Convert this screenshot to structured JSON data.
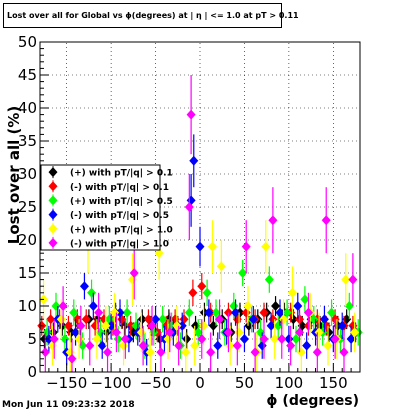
{
  "title": "Lost over all for Global vs ϕ(degrees) at | η | <= 1.0 at pT > 0.11",
  "timestamp": "Mon Jun 11 09:23:32 2018",
  "chart_data": {
    "type": "scatter",
    "title": "Lost over all for Global vs ϕ(degrees) at | η | <= 1.0 at pT > 0.11",
    "xlabel": "ϕ (degrees)",
    "ylabel": "Lost over all (%)",
    "xlim": [
      -180,
      180
    ],
    "ylim": [
      0,
      50
    ],
    "xticks": [
      -150,
      -100,
      -50,
      0,
      50,
      100,
      150
    ],
    "xtick_labels": [
      "−150",
      "−100",
      "−50",
      "0",
      "50",
      "100",
      "150"
    ],
    "yticks": [
      0,
      5,
      10,
      15,
      20,
      25,
      30,
      35,
      40,
      45,
      50
    ],
    "grid": true,
    "legend_position": "left, middle",
    "series": [
      {
        "name": "(+) with pT/|q| > 0.1",
        "color": "#000000",
        "x": [
          -175,
          -165,
          -155,
          -145,
          -135,
          -125,
          -115,
          -105,
          -95,
          -85,
          -75,
          -65,
          -55,
          -45,
          -35,
          -25,
          -15,
          -5,
          5,
          15,
          25,
          35,
          45,
          55,
          65,
          75,
          85,
          95,
          105,
          115,
          125,
          135,
          145,
          155,
          165,
          175
        ],
        "y": [
          5,
          6,
          7,
          6,
          7,
          8,
          8,
          6,
          9,
          7,
          6,
          8,
          7,
          5,
          8,
          7,
          5,
          7,
          9,
          7,
          8,
          6,
          9,
          7,
          8,
          9,
          10,
          9,
          8,
          7,
          8,
          7,
          6,
          7,
          8,
          6
        ],
        "yerr": [
          1.5,
          1.5,
          1.5,
          1.5,
          1.5,
          1.5,
          1.5,
          1.5,
          1.5,
          1.5,
          1.5,
          1.5,
          1.5,
          1.5,
          1.5,
          1.5,
          1.5,
          1.5,
          1.5,
          1.5,
          1.5,
          1.5,
          1.5,
          1.5,
          1.5,
          1.5,
          1.5,
          1.5,
          1.5,
          1.5,
          1.5,
          1.5,
          1.5,
          1.5,
          1.5,
          1.5
        ]
      },
      {
        "name": "(-) with pT/|q| > 0.1",
        "color": "#ff0000",
        "x": [
          -178,
          -168,
          -158,
          -148,
          -138,
          -128,
          -118,
          -108,
          -98,
          -88,
          -78,
          -68,
          -58,
          -48,
          -38,
          -28,
          -18,
          -8,
          2,
          12,
          22,
          32,
          42,
          52,
          62,
          72,
          82,
          92,
          102,
          112,
          122,
          132,
          142,
          152,
          162,
          172
        ],
        "y": [
          7,
          8,
          8,
          7,
          8,
          8,
          7,
          8,
          7,
          8,
          7,
          6,
          8,
          6,
          7,
          8,
          8,
          12,
          13,
          9,
          8,
          9,
          8,
          9,
          8,
          9,
          8,
          8,
          9,
          8,
          7,
          8,
          7,
          8,
          7,
          7
        ],
        "yerr": [
          1.5,
          1.5,
          1.5,
          1.5,
          1.5,
          1.5,
          1.5,
          1.5,
          1.5,
          1.5,
          1.5,
          1.5,
          1.5,
          1.5,
          1.5,
          1.5,
          1.5,
          2,
          2,
          1.5,
          1.5,
          1.5,
          1.5,
          1.5,
          1.5,
          1.5,
          1.5,
          1.5,
          1.5,
          1.5,
          1.5,
          1.5,
          1.5,
          1.5,
          1.5,
          1.5
        ]
      },
      {
        "name": "(+) with pT/|q| > 0.5",
        "color": "#00ff00",
        "x": [
          -172,
          -162,
          -152,
          -142,
          -132,
          -122,
          -112,
          -102,
          -92,
          -82,
          -72,
          -62,
          -52,
          -42,
          -32,
          -22,
          -12,
          -2,
          8,
          18,
          28,
          38,
          48,
          58,
          68,
          78,
          88,
          98,
          108,
          118,
          128,
          138,
          148,
          158,
          168,
          178
        ],
        "y": [
          6,
          10,
          5,
          9,
          4,
          12,
          6,
          8,
          5,
          9,
          7,
          4,
          6,
          8,
          7,
          4,
          9,
          6,
          12,
          9,
          6,
          10,
          15,
          8,
          6,
          14,
          7,
          9,
          5,
          11,
          8,
          6,
          9,
          5,
          10,
          6
        ],
        "yerr": [
          2,
          2,
          2,
          2,
          2,
          2,
          2,
          2,
          2,
          2,
          2,
          2,
          2,
          2,
          2,
          2,
          2,
          2,
          2,
          2,
          2,
          2,
          2,
          2,
          2,
          2,
          2,
          2,
          2,
          2,
          2,
          2,
          2,
          2,
          2,
          2
        ]
      },
      {
        "name": "(-) with pT/|q| > 0.5",
        "color": "#0000ff",
        "x": [
          -170,
          -160,
          -150,
          -140,
          -130,
          -120,
          -110,
          -100,
          -90,
          -80,
          -70,
          -60,
          -50,
          -40,
          -30,
          -20,
          -10,
          -7,
          0,
          10,
          20,
          30,
          40,
          50,
          60,
          70,
          80,
          90,
          100,
          110,
          120,
          130,
          140,
          150,
          160,
          170
        ],
        "y": [
          5,
          8,
          3,
          6,
          13,
          10,
          4,
          7,
          9,
          5,
          6,
          3,
          8,
          5,
          6,
          7,
          26,
          32,
          19,
          9,
          4,
          6,
          9,
          5,
          8,
          4,
          7,
          9,
          5,
          10,
          4,
          6,
          8,
          5,
          7,
          5
        ],
        "yerr": [
          2,
          2,
          2,
          2,
          2,
          2,
          2,
          2,
          2,
          2,
          2,
          2,
          2,
          2,
          2,
          2,
          4,
          4,
          3,
          2,
          2,
          2,
          2,
          2,
          2,
          2,
          2,
          2,
          2,
          2,
          2,
          2,
          2,
          2,
          2,
          2
        ]
      },
      {
        "name": "(+) with pT/|q| > 1.0",
        "color": "#ffff00",
        "x": [
          -176,
          -166,
          -156,
          -146,
          -136,
          -126,
          -116,
          -106,
          -96,
          -86,
          -76,
          -66,
          -56,
          -46,
          -36,
          -26,
          -16,
          -6,
          4,
          14,
          24,
          34,
          44,
          54,
          64,
          74,
          84,
          94,
          104,
          114,
          124,
          134,
          144,
          154,
          164,
          174
        ],
        "y": [
          11,
          4,
          8,
          3,
          5,
          19,
          5,
          7,
          9,
          4,
          14,
          6,
          3,
          18,
          5,
          7,
          3,
          4,
          7,
          19,
          16,
          4,
          6,
          10,
          3,
          19,
          5,
          8,
          12,
          3,
          9,
          6,
          4,
          5,
          14,
          6
        ],
        "yerr": [
          3,
          3,
          3,
          3,
          3,
          4,
          3,
          3,
          3,
          3,
          4,
          3,
          3,
          4,
          3,
          3,
          3,
          3,
          3,
          4,
          4,
          3,
          3,
          3,
          3,
          4,
          3,
          3,
          4,
          3,
          3,
          3,
          3,
          3,
          4,
          3
        ]
      },
      {
        "name": "(-) with pT/|q| > 1.0",
        "color": "#ff00ff",
        "x": [
          -174,
          -164,
          -154,
          -144,
          -134,
          -124,
          -114,
          -104,
          -94,
          -84,
          -74,
          -64,
          -54,
          -44,
          -34,
          -24,
          -12,
          -10,
          2,
          12,
          22,
          32,
          42,
          52,
          62,
          72,
          82,
          92,
          102,
          112,
          122,
          132,
          142,
          152,
          162,
          172
        ],
        "y": [
          3,
          5,
          10,
          2,
          7,
          4,
          9,
          3,
          6,
          5,
          15,
          4,
          7,
          3,
          6,
          4,
          25,
          39,
          5,
          3,
          8,
          6,
          4,
          19,
          3,
          5,
          23,
          5,
          4,
          6,
          9,
          3,
          23,
          5,
          3,
          14
        ],
        "yerr": [
          3,
          3,
          3,
          3,
          3,
          3,
          3,
          3,
          3,
          3,
          4,
          3,
          3,
          3,
          3,
          3,
          5,
          6,
          3,
          3,
          3,
          3,
          3,
          4,
          3,
          3,
          5,
          3,
          3,
          3,
          3,
          3,
          5,
          3,
          3,
          4
        ]
      }
    ]
  }
}
